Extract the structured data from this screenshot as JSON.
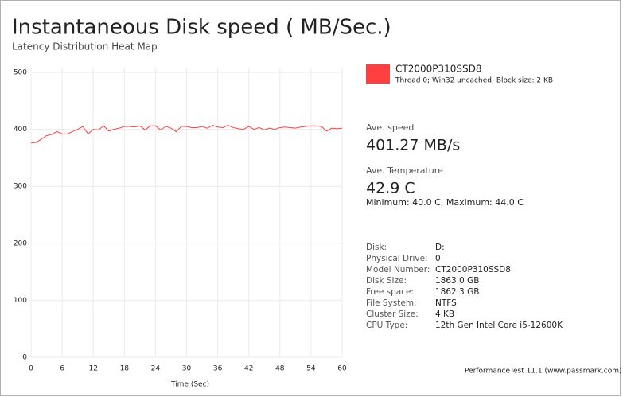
{
  "chart_data": {
    "type": "line",
    "title": "Instantaneous Disk speed ( MB/Sec.)",
    "subtitle": "Latency Distribution Heat Map",
    "xlabel": "Time (Sec)",
    "x": [
      0,
      1,
      2,
      3,
      4,
      5,
      6,
      7,
      8,
      9,
      10,
      11,
      12,
      13,
      14,
      15,
      16,
      17,
      18,
      19,
      20,
      21,
      22,
      23,
      24,
      25,
      26,
      27,
      28,
      29,
      30,
      31,
      32,
      33,
      34,
      35,
      36,
      37,
      38,
      39,
      40,
      41,
      42,
      43,
      44,
      45,
      46,
      47,
      48,
      49,
      50,
      51,
      52,
      53,
      54,
      55,
      56,
      57,
      58,
      59,
      60
    ],
    "series": [
      {
        "name": "CT2000P310SSD8",
        "color": "#ff4040",
        "values": [
          376,
          377,
          383,
          389,
          391,
          396,
          392,
          392,
          396,
          400,
          405,
          392,
          400,
          399,
          406,
          397,
          400,
          402,
          405,
          405,
          404,
          406,
          399,
          406,
          406,
          399,
          405,
          402,
          396,
          405,
          405,
          403,
          403,
          405,
          402,
          407,
          404,
          403,
          407,
          403,
          401,
          400,
          405,
          400,
          403,
          399,
          402,
          400,
          403,
          404,
          403,
          402,
          404,
          405,
          406,
          406,
          405,
          397,
          402,
          401,
          402
        ]
      }
    ],
    "xlim": [
      0,
      60
    ],
    "xticks": [
      0,
      6,
      12,
      18,
      24,
      30,
      36,
      42,
      48,
      54,
      60
    ],
    "ylim": [
      0,
      500
    ],
    "yticks": [
      0,
      100,
      200,
      300,
      400,
      500
    ],
    "grid": true
  },
  "legend_detail": "Thread 0; Win32 uncached; Block size: 2 KB",
  "stats": {
    "speed_label": "Ave. speed",
    "speed_value": "401.27 MB/s",
    "temp_label": "Ave. Temperature",
    "temp_value": "42.9 C",
    "temp_range": "Minimum: 40.0 C, Maximum: 44.0 C"
  },
  "disk_info": [
    [
      "Disk:",
      "D:"
    ],
    [
      "Physical Drive:",
      "0"
    ],
    [
      "Model Number:",
      "CT2000P310SSD8"
    ],
    [
      "Disk Size:",
      "1863.0 GB"
    ],
    [
      "Free space:",
      "1862.3 GB"
    ],
    [
      "File System:",
      "NTFS"
    ],
    [
      "Cluster Size:",
      "4 KB"
    ],
    [
      "CPU Type:",
      "12th Gen Intel Core i5-12600K"
    ]
  ],
  "footer": "PerformanceTest 11.1 (www.passmark.com)"
}
